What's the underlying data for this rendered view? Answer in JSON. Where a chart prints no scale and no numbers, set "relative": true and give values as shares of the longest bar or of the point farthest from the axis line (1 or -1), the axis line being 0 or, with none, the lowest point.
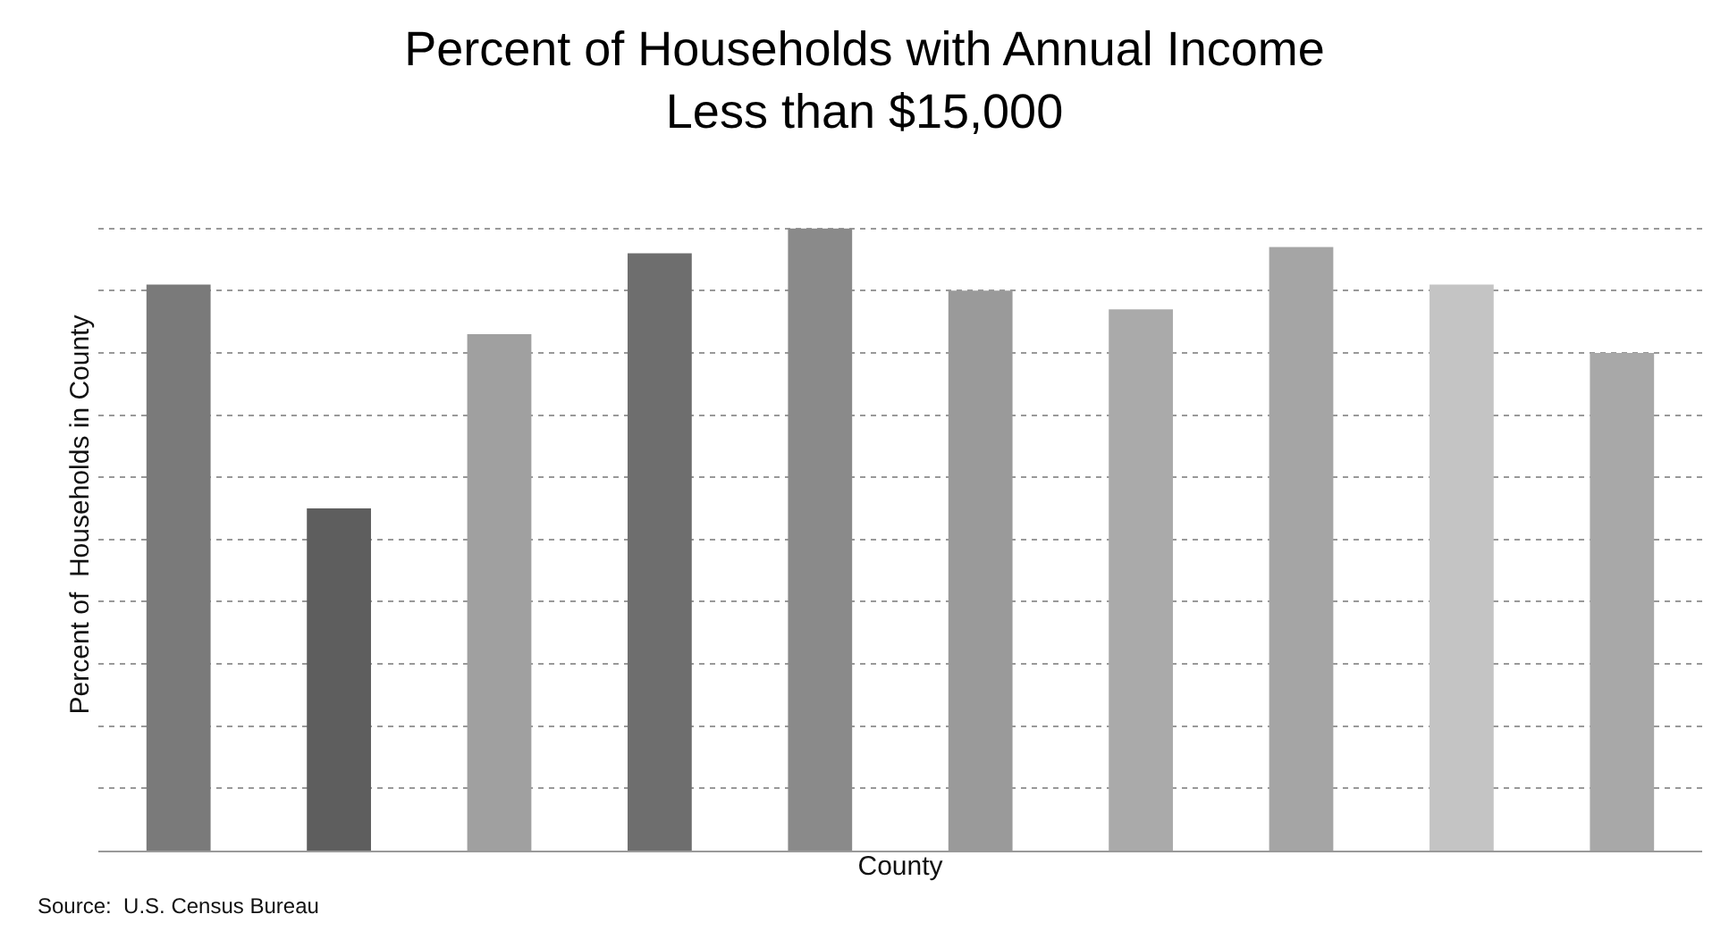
{
  "chart_data": {
    "type": "bar",
    "title": "Percent of Households with Annual Income\nLess than $15,000",
    "xlabel": "County",
    "ylabel": "Percent of  Households in County",
    "annotations": [
      "Source:  U.S. Census Bureau"
    ],
    "relative": true,
    "grid": "y",
    "categories": [
      null,
      null,
      null,
      null,
      null,
      null,
      null,
      null,
      null,
      null
    ],
    "values": [
      0.91,
      0.55,
      0.83,
      0.96,
      1,
      0.9,
      0.87,
      0.97,
      0.91,
      0.8
    ],
    "colors": [
      "#7a7a7a",
      "#5e5e5e",
      "#a0a0a0",
      "#6e6e6e",
      "#8a8a8a",
      "#9a9a9a",
      "#aaaaaa",
      "#a5a5a5",
      "#c4c4c4",
      "#a8a8a8"
    ]
  }
}
